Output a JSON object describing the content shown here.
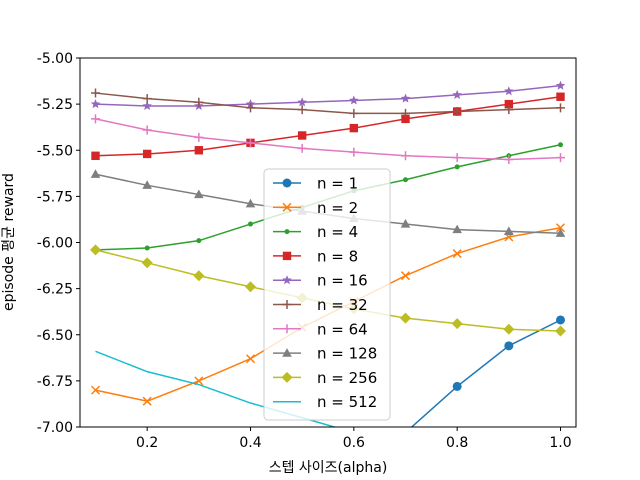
{
  "chart_data": {
    "type": "line",
    "xlabel": "스텝 사이즈(alpha)",
    "ylabel": "episode 평균 reward",
    "xlim": [
      0.07,
      1.03
    ],
    "ylim": [
      -7.0,
      -5.0
    ],
    "x_ticks": [
      0.2,
      0.4,
      0.6,
      0.8,
      1.0
    ],
    "x_tick_labels": [
      "0.2",
      "0.4",
      "0.6",
      "0.8",
      "1.0"
    ],
    "y_ticks": [
      -5.0,
      -5.25,
      -5.5,
      -5.75,
      -6.0,
      -6.25,
      -6.5,
      -6.75,
      -7.0
    ],
    "y_tick_labels": [
      "-5.00",
      "-5.25",
      "-5.50",
      "-5.75",
      "-6.00",
      "-6.25",
      "-6.50",
      "-6.75",
      "-7.00"
    ],
    "grid": false,
    "legend_position": "center",
    "x": [
      0.1,
      0.2,
      0.3,
      0.4,
      0.5,
      0.6,
      0.7,
      0.8,
      0.9,
      1.0
    ],
    "series": [
      {
        "name": "n = 1",
        "color": "#1f77b4",
        "marker": "circle",
        "values": [
          null,
          null,
          null,
          null,
          null,
          null,
          -7.03,
          -6.78,
          -6.56,
          -6.42
        ]
      },
      {
        "name": "n = 2",
        "color": "#ff7f0e",
        "marker": "x",
        "values": [
          -6.8,
          -6.86,
          -6.75,
          -6.63,
          -6.46,
          -6.32,
          -6.18,
          -6.06,
          -5.97,
          -5.92
        ]
      },
      {
        "name": "n = 4",
        "color": "#2ca02c",
        "marker": "dot",
        "values": [
          -6.04,
          -6.03,
          -5.99,
          -5.9,
          -5.81,
          -5.72,
          -5.66,
          -5.59,
          -5.53,
          -5.47
        ]
      },
      {
        "name": "n = 8",
        "color": "#d62728",
        "marker": "square",
        "values": [
          -5.53,
          -5.52,
          -5.5,
          -5.46,
          -5.42,
          -5.38,
          -5.33,
          -5.29,
          -5.25,
          -5.21
        ]
      },
      {
        "name": "n = 16",
        "color": "#9467bd",
        "marker": "star",
        "values": [
          -5.25,
          -5.26,
          -5.26,
          -5.25,
          -5.24,
          -5.23,
          -5.22,
          -5.2,
          -5.18,
          -5.15
        ]
      },
      {
        "name": "n = 32",
        "color": "#8c564b",
        "marker": "plus",
        "values": [
          -5.19,
          -5.22,
          -5.24,
          -5.27,
          -5.28,
          -5.3,
          -5.3,
          -5.29,
          -5.28,
          -5.27
        ]
      },
      {
        "name": "n = 64",
        "color": "#e377c2",
        "marker": "plus",
        "values": [
          -5.33,
          -5.39,
          -5.43,
          -5.46,
          -5.49,
          -5.51,
          -5.53,
          -5.54,
          -5.55,
          -5.54
        ]
      },
      {
        "name": "n = 128",
        "color": "#7f7f7f",
        "marker": "triangle",
        "values": [
          -5.63,
          -5.69,
          -5.74,
          -5.79,
          -5.83,
          -5.87,
          -5.9,
          -5.93,
          -5.94,
          -5.95
        ]
      },
      {
        "name": "n = 256",
        "color": "#bcbd22",
        "marker": "diamond",
        "values": [
          -6.04,
          -6.11,
          -6.18,
          -6.24,
          -6.3,
          -6.36,
          -6.41,
          -6.44,
          -6.47,
          -6.48
        ]
      },
      {
        "name": "n = 512",
        "color": "#17becf",
        "marker": "none",
        "values": [
          -6.59,
          -6.7,
          -6.77,
          -6.87,
          -6.95,
          -7.03,
          null,
          null,
          null,
          null
        ]
      }
    ]
  }
}
